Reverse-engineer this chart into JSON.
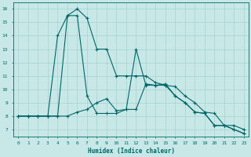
{
  "xlabel": "Humidex (Indice chaleur)",
  "bg_color": "#c8e8e8",
  "line_color": "#006666",
  "grid_color": "#a0cccc",
  "xlim": [
    -0.5,
    23.5
  ],
  "ylim": [
    6.5,
    16.5
  ],
  "xticks": [
    0,
    1,
    2,
    3,
    4,
    5,
    6,
    7,
    8,
    9,
    10,
    11,
    12,
    13,
    14,
    15,
    16,
    17,
    18,
    19,
    20,
    21,
    22,
    23
  ],
  "yticks": [
    7,
    8,
    9,
    10,
    11,
    12,
    13,
    14,
    15,
    16
  ],
  "lines": [
    {
      "x": [
        0,
        1,
        2,
        3,
        4,
        5,
        6,
        7,
        8,
        9,
        10,
        11,
        12,
        13,
        14,
        15,
        16,
        17,
        18,
        19,
        20,
        21,
        22,
        23
      ],
      "y": [
        8,
        8,
        8,
        8,
        8,
        8,
        8.3,
        8.5,
        9,
        9.3,
        8.4,
        8.5,
        8.5,
        10.4,
        10.3,
        10.4,
        9.5,
        9,
        8.3,
        8.2,
        7.3,
        7.3,
        7.0,
        6.7
      ]
    },
    {
      "x": [
        0,
        1,
        2,
        3,
        4,
        5,
        6,
        7,
        8,
        9,
        10,
        11,
        12,
        13,
        14,
        15,
        16,
        17,
        18,
        19,
        20,
        21,
        22,
        23
      ],
      "y": [
        8,
        8,
        8,
        8,
        14,
        15.5,
        16,
        15.3,
        13,
        13,
        11,
        11,
        11,
        11,
        10.5,
        10.3,
        10.2,
        9.5,
        9,
        8.3,
        8.2,
        7.3,
        7.3,
        7.0
      ]
    },
    {
      "x": [
        0,
        1,
        2,
        3,
        4,
        5,
        6,
        7,
        8,
        9,
        10,
        11,
        12,
        13,
        14,
        15,
        16,
        17,
        18,
        19,
        20,
        21,
        22,
        23
      ],
      "y": [
        8,
        8,
        8,
        8,
        8,
        15.5,
        15.5,
        9.5,
        8.2,
        8.2,
        8.2,
        8.5,
        13,
        10.3,
        10.3,
        10.3,
        9.5,
        9,
        8.3,
        8.2,
        7.3,
        7.3,
        7.0,
        6.7
      ]
    }
  ]
}
